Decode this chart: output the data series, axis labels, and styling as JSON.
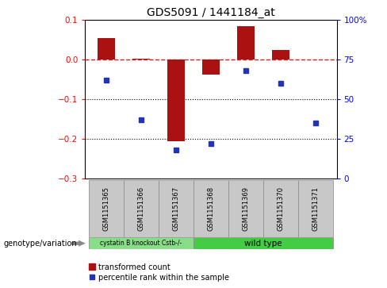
{
  "title": "GDS5091 / 1441184_at",
  "samples": [
    "GSM1151365",
    "GSM1151366",
    "GSM1151367",
    "GSM1151368",
    "GSM1151369",
    "GSM1151370",
    "GSM1151371"
  ],
  "bar_values": [
    0.055,
    0.002,
    -0.205,
    -0.038,
    0.085,
    0.025,
    0.001
  ],
  "percentile_values": [
    62,
    37,
    18,
    22,
    68,
    60,
    35
  ],
  "ylim_left": [
    -0.3,
    0.1
  ],
  "ylim_right": [
    0,
    100
  ],
  "yticks_left": [
    -0.3,
    -0.2,
    -0.1,
    0.0,
    0.1
  ],
  "yticks_right": [
    0,
    25,
    50,
    75,
    100
  ],
  "ytick_labels_right": [
    "0",
    "25",
    "50",
    "75",
    "100%"
  ],
  "bar_color": "#AA1111",
  "blue_color": "#2233BB",
  "dashed_line_color": "#CC2222",
  "dotted_line_vals": [
    -0.1,
    -0.2
  ],
  "group1_label": "cystatin B knockout Cstb-/-",
  "group2_label": "wild type",
  "group1_indices": [
    0,
    1,
    2
  ],
  "group2_indices": [
    3,
    4,
    5,
    6
  ],
  "group1_color": "#88DD88",
  "group2_color": "#44CC44",
  "genotype_label": "genotype/variation",
  "legend_bar_label": "transformed count",
  "legend_dot_label": "percentile rank within the sample",
  "bar_width": 0.5,
  "fig_width": 4.88,
  "fig_height": 3.63,
  "fig_dpi": 100
}
